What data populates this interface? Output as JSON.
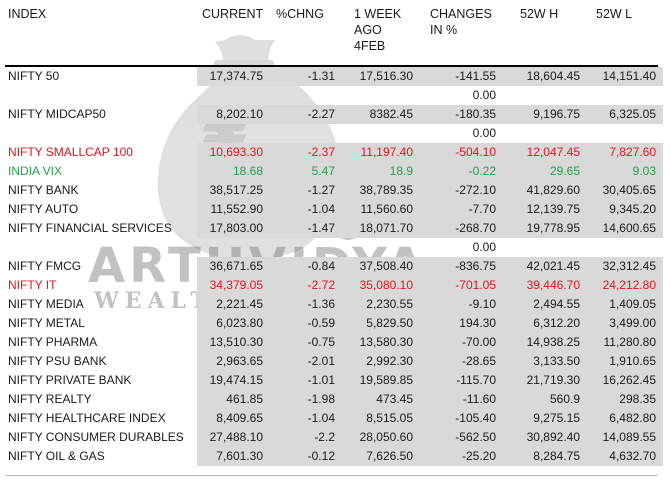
{
  "headers": {
    "index": "INDEX",
    "current": "CURRENT",
    "pct": "%CHNG",
    "week": "1 WEEK\nAGO\n4FEB",
    "changes": "CHANGES\nIN %",
    "h52": "52W H",
    "l52": "52W L"
  },
  "watermark": {
    "brand": "ARTHVIDYA",
    "tagline": "WEALTH CENTRA"
  },
  "colors": {
    "red": "#e0161b",
    "green": "#1fa24a",
    "shade": "#d9d9d9",
    "black": "#1a1a1a"
  },
  "rows": [
    {
      "name": "NIFTY 50",
      "current": "17,374.75",
      "pct": "-1.31",
      "week": "17,516.30",
      "changes": "-141.55",
      "h52": "18,604.45",
      "l52": "14,151.40",
      "color": "black",
      "extra": "0.00"
    },
    {
      "name": "NIFTY MIDCAP50",
      "current": "8,202.10",
      "pct": "-2.27",
      "week": "8382.45",
      "changes": "-180.35",
      "h52": "9,196.75",
      "l52": "6,325.05",
      "color": "black",
      "extra": "0.00"
    },
    {
      "name": "NIFTY SMALLCAP 100",
      "current": "10,693.30",
      "pct": "-2.37",
      "week": "11,197.40",
      "changes": "-504.10",
      "h52": "12,047.45",
      "l52": "7,827.60",
      "color": "red"
    },
    {
      "name": "INDIA VIX",
      "current": "18.68",
      "pct": "5.47",
      "week": "18.9",
      "changes": "-0.22",
      "h52": "29.65",
      "l52": "9.03",
      "color": "green"
    },
    {
      "name": "NIFTY BANK",
      "current": "38,517.25",
      "pct": "-1.27",
      "week": "38,789.35",
      "changes": "-272.10",
      "h52": "41,829.60",
      "l52": "30,405.65",
      "color": "black"
    },
    {
      "name": "NIFTY AUTO",
      "current": "11,552.90",
      "pct": "-1.04",
      "week": "11,560.60",
      "changes": "-7.70",
      "h52": "12,139.75",
      "l52": "9,345.20",
      "color": "black"
    },
    {
      "name": "NIFTY FINANCIAL SERVICES",
      "current": "17,803.00",
      "pct": "-1.47",
      "week": "18,071.70",
      "changes": "-268.70",
      "h52": "19,778.95",
      "l52": "14,600.65",
      "color": "black",
      "extra": "0.00"
    },
    {
      "name": "NIFTY FMCG",
      "current": "36,671.65",
      "pct": "-0.84",
      "week": "37,508.40",
      "changes": "-836.75",
      "h52": "42,021.45",
      "l52": "32,312.45",
      "color": "black"
    },
    {
      "name": "NIFTY IT",
      "current": "34,379.05",
      "pct": "-2.72",
      "week": "35,080.10",
      "changes": "-701.05",
      "h52": "39,446.70",
      "l52": "24,212.80",
      "color": "red"
    },
    {
      "name": "NIFTY MEDIA",
      "current": "2,221.45",
      "pct": "-1.36",
      "week": "2,230.55",
      "changes": "-9.10",
      "h52": "2,494.55",
      "l52": "1,409.05",
      "color": "black"
    },
    {
      "name": "NIFTY METAL",
      "current": "6,023.80",
      "pct": "-0.59",
      "week": "5,829.50",
      "changes": "194.30",
      "h52": "6,312.20",
      "l52": "3,499.00",
      "color": "black"
    },
    {
      "name": "NIFTY PHARMA",
      "current": "13,510.30",
      "pct": "-0.75",
      "week": "13,580.30",
      "changes": "-70.00",
      "h52": "14,938.25",
      "l52": "11,280.80",
      "color": "black"
    },
    {
      "name": "NIFTY PSU BANK",
      "current": "2,963.65",
      "pct": "-2.01",
      "week": "2,992.30",
      "changes": "-28.65",
      "h52": "3,133.50",
      "l52": "1,910.65",
      "color": "black"
    },
    {
      "name": "NIFTY PRIVATE BANK",
      "current": "19,474.15",
      "pct": "-1.01",
      "week": "19,589.85",
      "changes": "-115.70",
      "h52": "21,719.30",
      "l52": "16,262.45",
      "color": "black"
    },
    {
      "name": "NIFTY REALTY",
      "current": "461.85",
      "pct": "-1.98",
      "week": "473.45",
      "changes": "-11.60",
      "h52": "560.9",
      "l52": "298.35",
      "color": "black"
    },
    {
      "name": "NIFTY HEALTHCARE INDEX",
      "current": "8,409.65",
      "pct": "-1.04",
      "week": "8,515.05",
      "changes": "-105.40",
      "h52": "9,275.15",
      "l52": "6,482.80",
      "color": "black"
    },
    {
      "name": "NIFTY CONSUMER DURABLES",
      "current": "27,488.10",
      "pct": "-2.2",
      "week": "28,050.60",
      "changes": "-562.50",
      "h52": "30,892.40",
      "l52": "14,089.55",
      "color": "black"
    },
    {
      "name": "NIFTY OIL & GAS",
      "current": "7,601.30",
      "pct": "-0.12",
      "week": "7,626.50",
      "changes": "-25.20",
      "h52": "8,284.75",
      "l52": "4,632.70",
      "color": "black"
    }
  ]
}
